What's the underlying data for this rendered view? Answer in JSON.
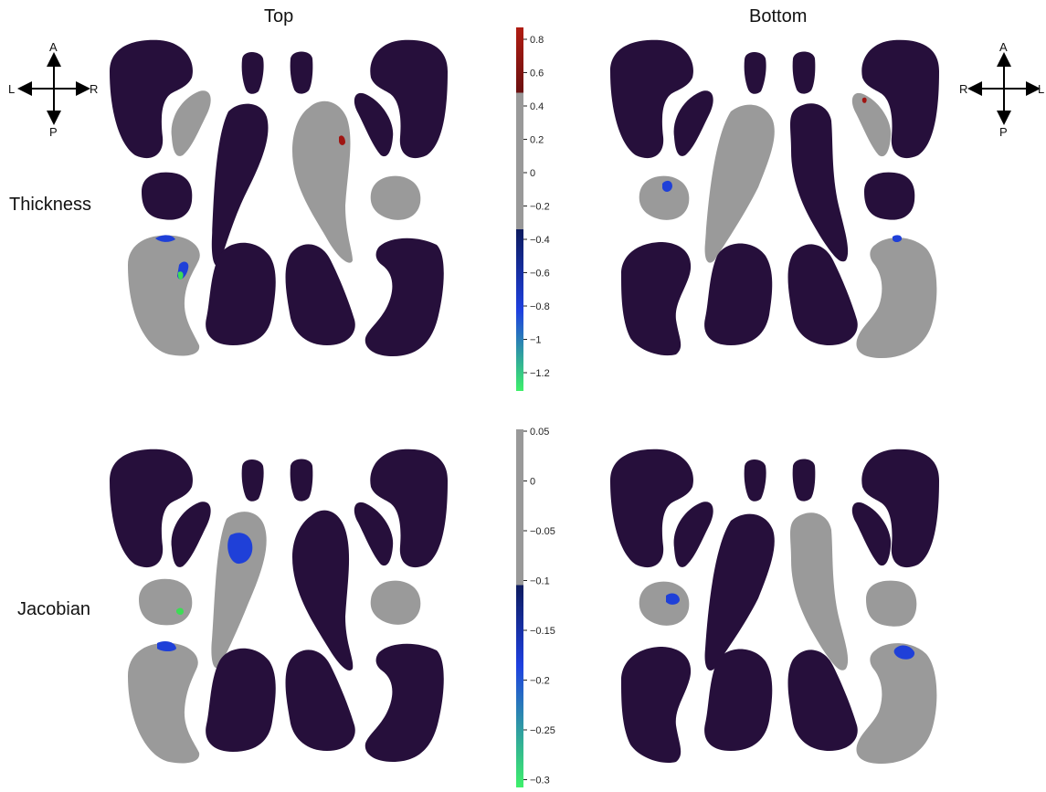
{
  "columns": {
    "top": "Top",
    "bottom": "Bottom"
  },
  "rows": {
    "thickness": "Thickness",
    "jacobian": "Jacobian"
  },
  "compass_top": {
    "a": "A",
    "p": "P",
    "l": "L",
    "r": "R"
  },
  "compass_bottom": {
    "a": "A",
    "p": "P",
    "l": "R",
    "r": "L"
  },
  "colorbar_thickness": {
    "ticks": [
      "0.8",
      "0.6",
      "0.4",
      "0.2",
      "0",
      "−0.2",
      "−0.4",
      "−0.6",
      "−0.8",
      "−1",
      "−1.2"
    ],
    "range": [
      -1.3,
      0.88
    ]
  },
  "colorbar_jacobian": {
    "ticks": [
      "0.05",
      "0",
      "−0.05",
      "−0.1",
      "−0.15",
      "−0.2",
      "−0.25",
      "−0.3"
    ],
    "range": [
      -0.32,
      0.05
    ]
  },
  "colors": {
    "structure_dark": "#260f3b",
    "structure_gray": "#999999",
    "significant_blue": "#1f40d8",
    "significant_red": "#a01512",
    "significant_green": "#3ddc55"
  }
}
